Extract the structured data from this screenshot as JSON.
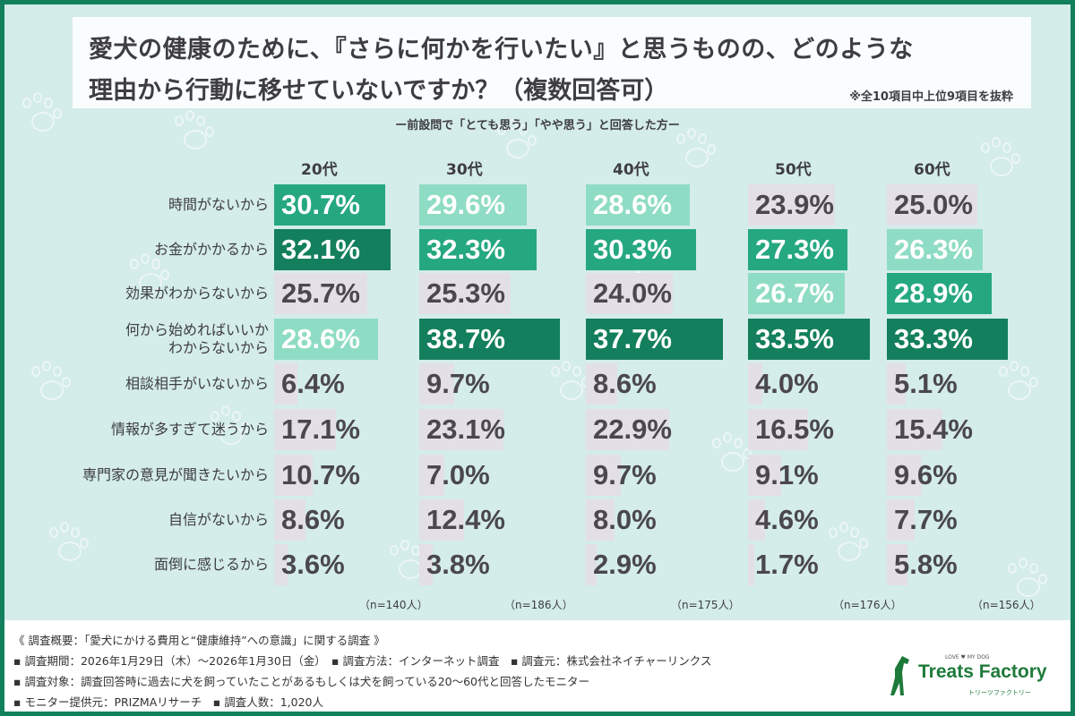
{
  "title_line1": "愛犬の健康のために、『さらに何かを行いたい』と思うものの、どのような",
  "title_line2": "理由から行動に移せていないですか？（複数回答可）",
  "note": "※全10項目中上位9項目を抜粋",
  "subtitle": "ー前設問で「とても思う」「やや思う」と回答した方ー",
  "colors": {
    "rank1": "#137f5c",
    "rank2": "#25a87f",
    "rank3": "#8fdcc4",
    "other": "#e3dfe6",
    "frame": "#12805c",
    "background": "#d4ecea"
  },
  "chart_data": {
    "type": "bar",
    "orientation": "horizontal",
    "title": "愛犬の健康のために、『さらに何かを行いたい』と思うものの、どのような理由から行動に移せていないですか？（複数回答可）",
    "categories": [
      "時間がないから",
      "お金がかかるから",
      "効果がわからないから",
      "何から始めればいいか\nわからないから",
      "相談相手がいないから",
      "情報が多すぎて迷うから",
      "専門家の意見が聞きたいから",
      "自信がないから",
      "面倒に感じるから"
    ],
    "unit": "%",
    "series": [
      {
        "name": "20代",
        "n": "（n=140人）",
        "values": [
          30.7,
          32.1,
          25.7,
          28.6,
          6.4,
          17.1,
          10.7,
          8.6,
          3.6
        ]
      },
      {
        "name": "30代",
        "n": "（n=186人）",
        "values": [
          29.6,
          32.3,
          25.3,
          38.7,
          9.7,
          23.1,
          7.0,
          12.4,
          3.8
        ]
      },
      {
        "name": "40代",
        "n": "（n=175人）",
        "values": [
          28.6,
          30.3,
          24.0,
          37.7,
          8.6,
          22.9,
          9.7,
          8.0,
          2.9
        ]
      },
      {
        "name": "50代",
        "n": "（n=176人）",
        "values": [
          23.9,
          27.3,
          26.7,
          33.5,
          4.0,
          16.5,
          9.1,
          4.6,
          1.7
        ]
      },
      {
        "name": "60代",
        "n": "（n=156人）",
        "values": [
          25.0,
          26.3,
          28.9,
          33.3,
          5.1,
          15.4,
          9.6,
          7.7,
          5.8
        ]
      }
    ],
    "highlight": "top 3 per age group shaded dark / mid / light green"
  },
  "footer": {
    "lines": [
      "《 調査概要：「愛犬にかける費用と“健康維持”への意識」に関する調査 》",
      "▪ 調査期間：2026年1月29日（木）～2026年1月30日（金）　▪ 調査方法：インターネット調査　▪ 調査元：株式会社ネイチャーリンクス",
      "▪ 調査対象：調査回答時に過去に犬を飼っていたことがあるもしくは犬を飼っている20～60代と回答したモニター",
      "▪ モニター提供元：PRIZMAリサーチ　▪ 調査人数：1,020人"
    ]
  },
  "logo": {
    "tagline": "LOVE ♥ MY DOG",
    "name": "Treats Factory",
    "kana": "トリーツファクトリー"
  }
}
